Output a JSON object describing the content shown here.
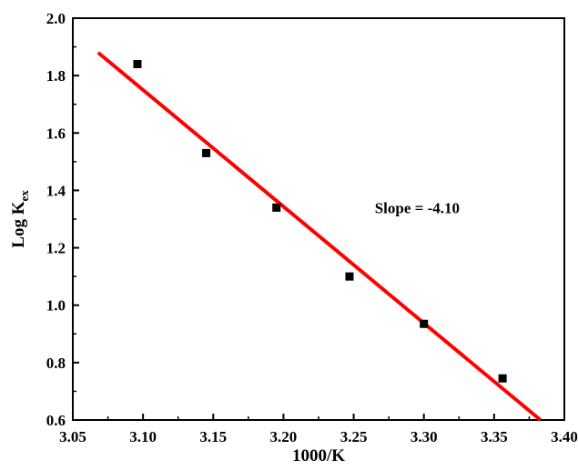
{
  "chart_data": {
    "type": "scatter",
    "xlabel": "1000/K",
    "ylabel": {
      "main": "Log K",
      "sub": "ex"
    },
    "xlim": [
      3.05,
      3.4
    ],
    "ylim": [
      0.6,
      2.0
    ],
    "xticks": [
      "3.05",
      "3.10",
      "3.15",
      "3.20",
      "3.25",
      "3.30",
      "3.35",
      "3.40"
    ],
    "yticks": [
      "0.6",
      "0.8",
      "1.0",
      "1.2",
      "1.4",
      "1.6",
      "1.8",
      "2.0"
    ],
    "series": [
      {
        "marker": "square",
        "color": "#000000",
        "points": [
          {
            "x": 3.096,
            "y": 1.84
          },
          {
            "x": 3.145,
            "y": 1.53
          },
          {
            "x": 3.195,
            "y": 1.34
          },
          {
            "x": 3.247,
            "y": 1.1
          },
          {
            "x": 3.3,
            "y": 0.935
          },
          {
            "x": 3.356,
            "y": 0.745
          }
        ]
      }
    ],
    "fit_line": {
      "color": "#ff0000",
      "from": {
        "x": 3.068,
        "y": 1.88
      },
      "to": {
        "x": 3.383,
        "y": 0.6
      }
    },
    "annotation": {
      "text": "Slope = -4.10",
      "x": 3.265,
      "y": 1.32
    }
  }
}
